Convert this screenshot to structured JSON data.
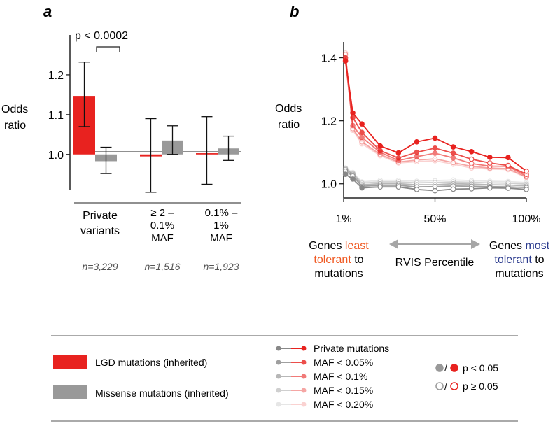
{
  "chart_data": [
    {
      "panel": "a",
      "type": "bar",
      "ylabel_line1": "Odds",
      "ylabel_line2": "ratio",
      "ylim": [
        0.91,
        1.3
      ],
      "yticks": [
        "1.0",
        "1.1",
        "1.2"
      ],
      "yticks_values": [
        1.0,
        1.1,
        1.2
      ],
      "significance": "p < 0.0002",
      "categories": [
        {
          "lines": [
            "Private",
            "variants"
          ],
          "n": "n=3,229"
        },
        {
          "lines": [
            "≥ 2 –",
            "0.1%",
            "MAF"
          ],
          "n": "n=1,516"
        },
        {
          "lines": [
            "0.1% –",
            "1%",
            "MAF"
          ],
          "n": "n=1,923"
        }
      ],
      "series": [
        {
          "name": "LGD mutations (inherited)",
          "color": "#e8221f",
          "values": [
            1.147,
            0.995,
            1.003
          ],
          "err_low": [
            1.07,
            0.905,
            0.925
          ],
          "err_high": [
            1.232,
            1.09,
            1.095
          ]
        },
        {
          "name": "Missense mutations (inherited)",
          "color": "#999999",
          "values": [
            0.983,
            1.035,
            1.015
          ],
          "err_low": [
            0.952,
            1.0,
            0.985
          ],
          "err_high": [
            1.018,
            1.072,
            1.046
          ]
        }
      ]
    },
    {
      "panel": "b",
      "type": "line",
      "ylabel_line1": "Odds",
      "ylabel_line2": "ratio",
      "ylim": [
        0.955,
        1.45
      ],
      "yticks": [
        "1.0",
        "1.2",
        "1.4"
      ],
      "yticks_values": [
        1.0,
        1.2,
        1.4
      ],
      "x": [
        1,
        5,
        10,
        20,
        30,
        40,
        50,
        60,
        70,
        80,
        90,
        100
      ],
      "xlim": [
        0,
        100
      ],
      "xticks": [
        "1%",
        "50%",
        "100%"
      ],
      "xticks_values": [
        0,
        50,
        100
      ],
      "xlabel": "RVIS Percentile",
      "left_note": {
        "pre": "Genes ",
        "hl1": "least",
        "hl2": "tolerant",
        "post2": " to",
        "post3": "mutations",
        "color": "#f05a23"
      },
      "right_note": {
        "pre": "Genes ",
        "hl1": "most",
        "hl2": "tolerant",
        "post2": " to",
        "post3": "mutations",
        "color": "#2b3b8e"
      },
      "series": [
        {
          "name": "Private mutations",
          "group": "LGD",
          "color": "#e8221f",
          "alpha": 1.0,
          "values": [
            1.39,
            1.225,
            1.19,
            1.12,
            1.098,
            1.133,
            1.145,
            1.117,
            1.102,
            1.084,
            1.083,
            1.04
          ],
          "significant": [
            true,
            true,
            true,
            true,
            true,
            true,
            true,
            true,
            true,
            true,
            true,
            false
          ]
        },
        {
          "name": "MAF < 0.05%",
          "group": "LGD",
          "color": "#e8221f",
          "alpha": 0.8,
          "values": [
            1.4,
            1.21,
            1.163,
            1.105,
            1.082,
            1.1,
            1.113,
            1.097,
            1.078,
            1.066,
            1.058,
            1.03
          ],
          "significant": [
            true,
            true,
            true,
            true,
            true,
            true,
            true,
            true,
            false,
            false,
            false,
            false
          ]
        },
        {
          "name": "MAF < 0.1%",
          "group": "LGD",
          "color": "#e8221f",
          "alpha": 0.6,
          "values": [
            1.39,
            1.185,
            1.147,
            1.1,
            1.074,
            1.086,
            1.097,
            1.082,
            1.064,
            1.056,
            1.055,
            1.025
          ],
          "significant": [
            true,
            true,
            true,
            true,
            true,
            true,
            true,
            true,
            false,
            false,
            false,
            false
          ]
        },
        {
          "name": "MAF < 0.15%",
          "group": "LGD",
          "color": "#e8221f",
          "alpha": 0.4,
          "values": [
            1.41,
            1.175,
            1.133,
            1.093,
            1.069,
            1.075,
            1.079,
            1.067,
            1.055,
            1.05,
            1.048,
            1.022
          ],
          "significant": [
            false,
            false,
            false,
            false,
            false,
            false,
            false,
            false,
            false,
            false,
            false,
            false
          ]
        },
        {
          "name": "MAF < 0.20%",
          "group": "LGD",
          "color": "#e8221f",
          "alpha": 0.2,
          "values": [
            1.415,
            1.17,
            1.127,
            1.089,
            1.066,
            1.07,
            1.073,
            1.062,
            1.05,
            1.047,
            1.045,
            1.02
          ],
          "significant": [
            false,
            false,
            false,
            false,
            false,
            false,
            false,
            false,
            false,
            false,
            false,
            false
          ]
        },
        {
          "name": "Private mutations",
          "group": "Missense",
          "color": "#888888",
          "alpha": 1.0,
          "values": [
            1.03,
            1.015,
            0.987,
            0.99,
            0.99,
            0.982,
            0.978,
            0.983,
            0.984,
            0.987,
            0.986,
            0.982
          ],
          "significant": [
            true,
            true,
            true,
            false,
            false,
            false,
            false,
            false,
            false,
            false,
            false,
            false
          ]
        },
        {
          "name": "MAF < 0.05%",
          "group": "Missense",
          "color": "#888888",
          "alpha": 0.8,
          "values": [
            1.04,
            1.025,
            0.992,
            0.995,
            0.995,
            0.99,
            0.991,
            0.993,
            0.992,
            0.991,
            0.99,
            0.988
          ],
          "significant": [
            false,
            false,
            false,
            false,
            false,
            false,
            false,
            false,
            false,
            false,
            false,
            false
          ]
        },
        {
          "name": "MAF < 0.1%",
          "group": "Missense",
          "color": "#888888",
          "alpha": 0.6,
          "values": [
            1.045,
            1.03,
            0.997,
            1.0,
            1.0,
            0.997,
            0.997,
            1.0,
            0.999,
            0.997,
            0.996,
            0.993
          ],
          "significant": [
            false,
            false,
            false,
            false,
            false,
            false,
            false,
            false,
            false,
            false,
            false,
            false
          ]
        },
        {
          "name": "MAF < 0.15%",
          "group": "Missense",
          "color": "#888888",
          "alpha": 0.4,
          "values": [
            1.048,
            1.033,
            1.002,
            1.006,
            1.006,
            1.003,
            1.004,
            1.006,
            1.005,
            1.003,
            1.002,
            0.999
          ],
          "significant": [
            false,
            false,
            false,
            false,
            false,
            false,
            false,
            false,
            false,
            false,
            false,
            false
          ]
        },
        {
          "name": "MAF < 0.20%",
          "group": "Missense",
          "color": "#888888",
          "alpha": 0.2,
          "values": [
            1.05,
            1.036,
            1.006,
            1.011,
            1.011,
            1.008,
            1.01,
            1.012,
            1.01,
            1.008,
            1.007,
            1.004
          ],
          "significant": [
            false,
            false,
            false,
            false,
            false,
            false,
            false,
            false,
            false,
            false,
            false,
            false
          ]
        }
      ]
    }
  ],
  "legend": {
    "bars": [
      {
        "label": "LGD mutations (inherited)",
        "color": "#e8221f"
      },
      {
        "label": "Missense mutations (inherited)",
        "color": "#999999"
      }
    ],
    "lines": [
      {
        "label": "Private mutations",
        "alpha": 1.0
      },
      {
        "label": "MAF < 0.05%",
        "alpha": 0.8
      },
      {
        "label": "MAF < 0.1%",
        "alpha": 0.6
      },
      {
        "label": "MAF < 0.15%",
        "alpha": 0.4
      },
      {
        "label": "MAF < 0.20%",
        "alpha": 0.2
      }
    ],
    "sig": [
      {
        "sep": "/",
        "label": "p < 0.05",
        "filled": true
      },
      {
        "sep": "/",
        "label": "p ≥ 0.05",
        "filled": false
      }
    ]
  }
}
